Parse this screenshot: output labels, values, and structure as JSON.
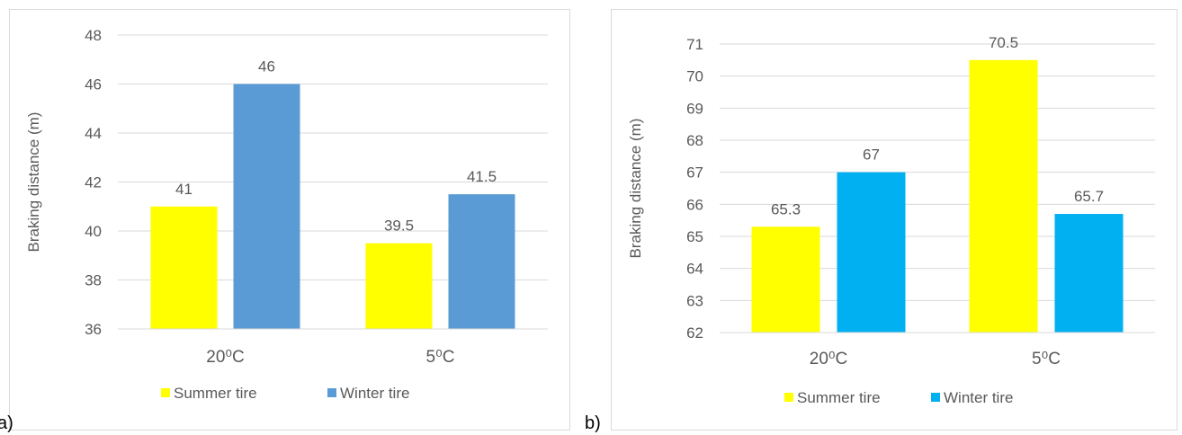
{
  "panels": {
    "a": "a)",
    "b": "b)"
  },
  "colors": {
    "summer": "#ffff00",
    "winter_a": "#5b9bd5",
    "winter_b": "#00b0f0",
    "grid": "#d9d9d9",
    "text": "#595959"
  },
  "chart_data": [
    {
      "type": "bar",
      "categories": [
        "20⁰C",
        "5⁰C"
      ],
      "series": [
        {
          "name": "Summer tire",
          "values": [
            41,
            39.5
          ]
        },
        {
          "name": "Winter tire",
          "values": [
            46,
            41.5
          ]
        }
      ],
      "data_labels": [
        [
          "41",
          "39.5"
        ],
        [
          "46",
          "41.5"
        ]
      ],
      "title": "",
      "xlabel": "",
      "ylabel": "Braking distance (m)",
      "ylim": [
        36,
        48
      ],
      "yticks": [
        36,
        38,
        40,
        42,
        44,
        46,
        48
      ],
      "grid": true,
      "legend": "bottom"
    },
    {
      "type": "bar",
      "categories": [
        "20⁰C",
        "5⁰C"
      ],
      "series": [
        {
          "name": "Summer tire",
          "values": [
            65.3,
            70.5
          ]
        },
        {
          "name": "Winter tire",
          "values": [
            67,
            65.7
          ]
        }
      ],
      "data_labels": [
        [
          "65.3",
          "70.5"
        ],
        [
          "67",
          "65.7"
        ]
      ],
      "title": "",
      "xlabel": "",
      "ylabel": "Braking distance (m)",
      "ylim": [
        62,
        71
      ],
      "yticks": [
        62,
        63,
        64,
        65,
        66,
        67,
        68,
        69,
        70,
        71
      ],
      "grid": true,
      "legend": "bottom"
    }
  ]
}
